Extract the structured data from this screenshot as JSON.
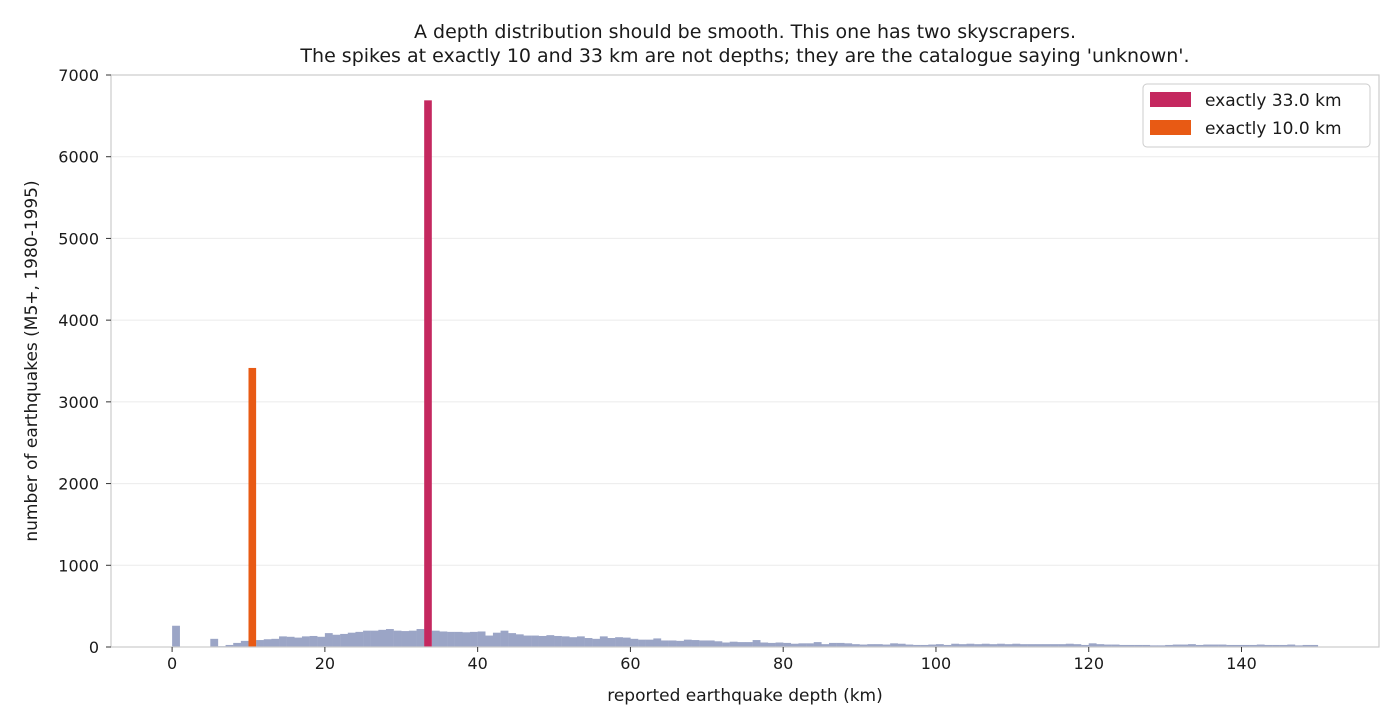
{
  "chart_data": {
    "type": "bar",
    "title": "A depth distribution should be smooth. This one has two skyscrapers.",
    "subtitle": "The spikes at exactly 10 and 33 km are not depths; they are the catalogue saying 'unknown'.",
    "xlabel": "reported earthquake depth (km)",
    "ylabel": "number of earthquakes (M5+, 1980-1995)",
    "xlim": [
      -8,
      158
    ],
    "ylim": [
      0,
      7000
    ],
    "xticks": [
      0,
      20,
      40,
      60,
      80,
      100,
      120,
      140
    ],
    "yticks": [
      0,
      1000,
      2000,
      3000,
      4000,
      5000,
      6000,
      7000
    ],
    "grid": "horizontal",
    "legend_position": "top-right",
    "bin_width": 1,
    "base_series": {
      "name": "",
      "color": "#9ba5c6",
      "x": [
        0,
        1,
        2,
        3,
        4,
        5,
        6,
        7,
        8,
        9,
        10,
        11,
        12,
        13,
        14,
        15,
        16,
        17,
        18,
        19,
        20,
        21,
        22,
        23,
        24,
        25,
        26,
        27,
        28,
        29,
        30,
        31,
        32,
        33,
        34,
        35,
        36,
        37,
        38,
        39,
        40,
        41,
        42,
        43,
        44,
        45,
        46,
        47,
        48,
        49,
        50,
        51,
        52,
        53,
        54,
        55,
        56,
        57,
        58,
        59,
        60,
        61,
        62,
        63,
        64,
        65,
        66,
        67,
        68,
        69,
        70,
        71,
        72,
        73,
        74,
        75,
        76,
        77,
        78,
        79,
        80,
        81,
        82,
        83,
        84,
        85,
        86,
        87,
        88,
        89,
        90,
        91,
        92,
        93,
        94,
        95,
        96,
        97,
        98,
        99,
        100,
        101,
        102,
        103,
        104,
        105,
        106,
        107,
        108,
        109,
        110,
        111,
        112,
        113,
        114,
        115,
        116,
        117,
        118,
        119,
        120,
        121,
        122,
        123,
        124,
        125,
        126,
        127,
        128,
        129,
        130,
        131,
        132,
        133,
        134,
        135,
        136,
        137,
        138,
        139,
        140,
        141,
        142,
        143,
        144,
        145,
        146,
        147,
        148,
        149
      ],
      "values": [
        260,
        0,
        0,
        0,
        0,
        100,
        10,
        25,
        50,
        75,
        0,
        85,
        95,
        100,
        130,
        125,
        115,
        130,
        135,
        125,
        170,
        150,
        160,
        175,
        185,
        200,
        200,
        210,
        220,
        200,
        195,
        200,
        220,
        0,
        200,
        190,
        185,
        185,
        180,
        185,
        190,
        140,
        175,
        200,
        170,
        155,
        140,
        140,
        135,
        145,
        135,
        130,
        120,
        130,
        110,
        100,
        130,
        110,
        120,
        115,
        100,
        90,
        90,
        105,
        80,
        80,
        75,
        90,
        85,
        80,
        80,
        70,
        55,
        65,
        60,
        60,
        85,
        55,
        50,
        55,
        50,
        40,
        45,
        45,
        60,
        35,
        50,
        50,
        45,
        35,
        30,
        35,
        35,
        30,
        45,
        40,
        30,
        25,
        25,
        30,
        35,
        25,
        40,
        35,
        40,
        35,
        40,
        35,
        40,
        35,
        40,
        35,
        35,
        35,
        35,
        35,
        35,
        40,
        35,
        25,
        45,
        35,
        30,
        30,
        25,
        25,
        25,
        25,
        20,
        20,
        25,
        30,
        30,
        35,
        25,
        30,
        30,
        30,
        25,
        25,
        25,
        25,
        30,
        25,
        25,
        25,
        30,
        20,
        25,
        25
      ]
    },
    "spikes": [
      {
        "name": "exactly 33.0 km",
        "x": 33.0,
        "value": 6690,
        "color": "#c4285f"
      },
      {
        "name": "exactly 10.0 km",
        "x": 10.0,
        "value": 3415,
        "color": "#e85a14"
      }
    ]
  }
}
